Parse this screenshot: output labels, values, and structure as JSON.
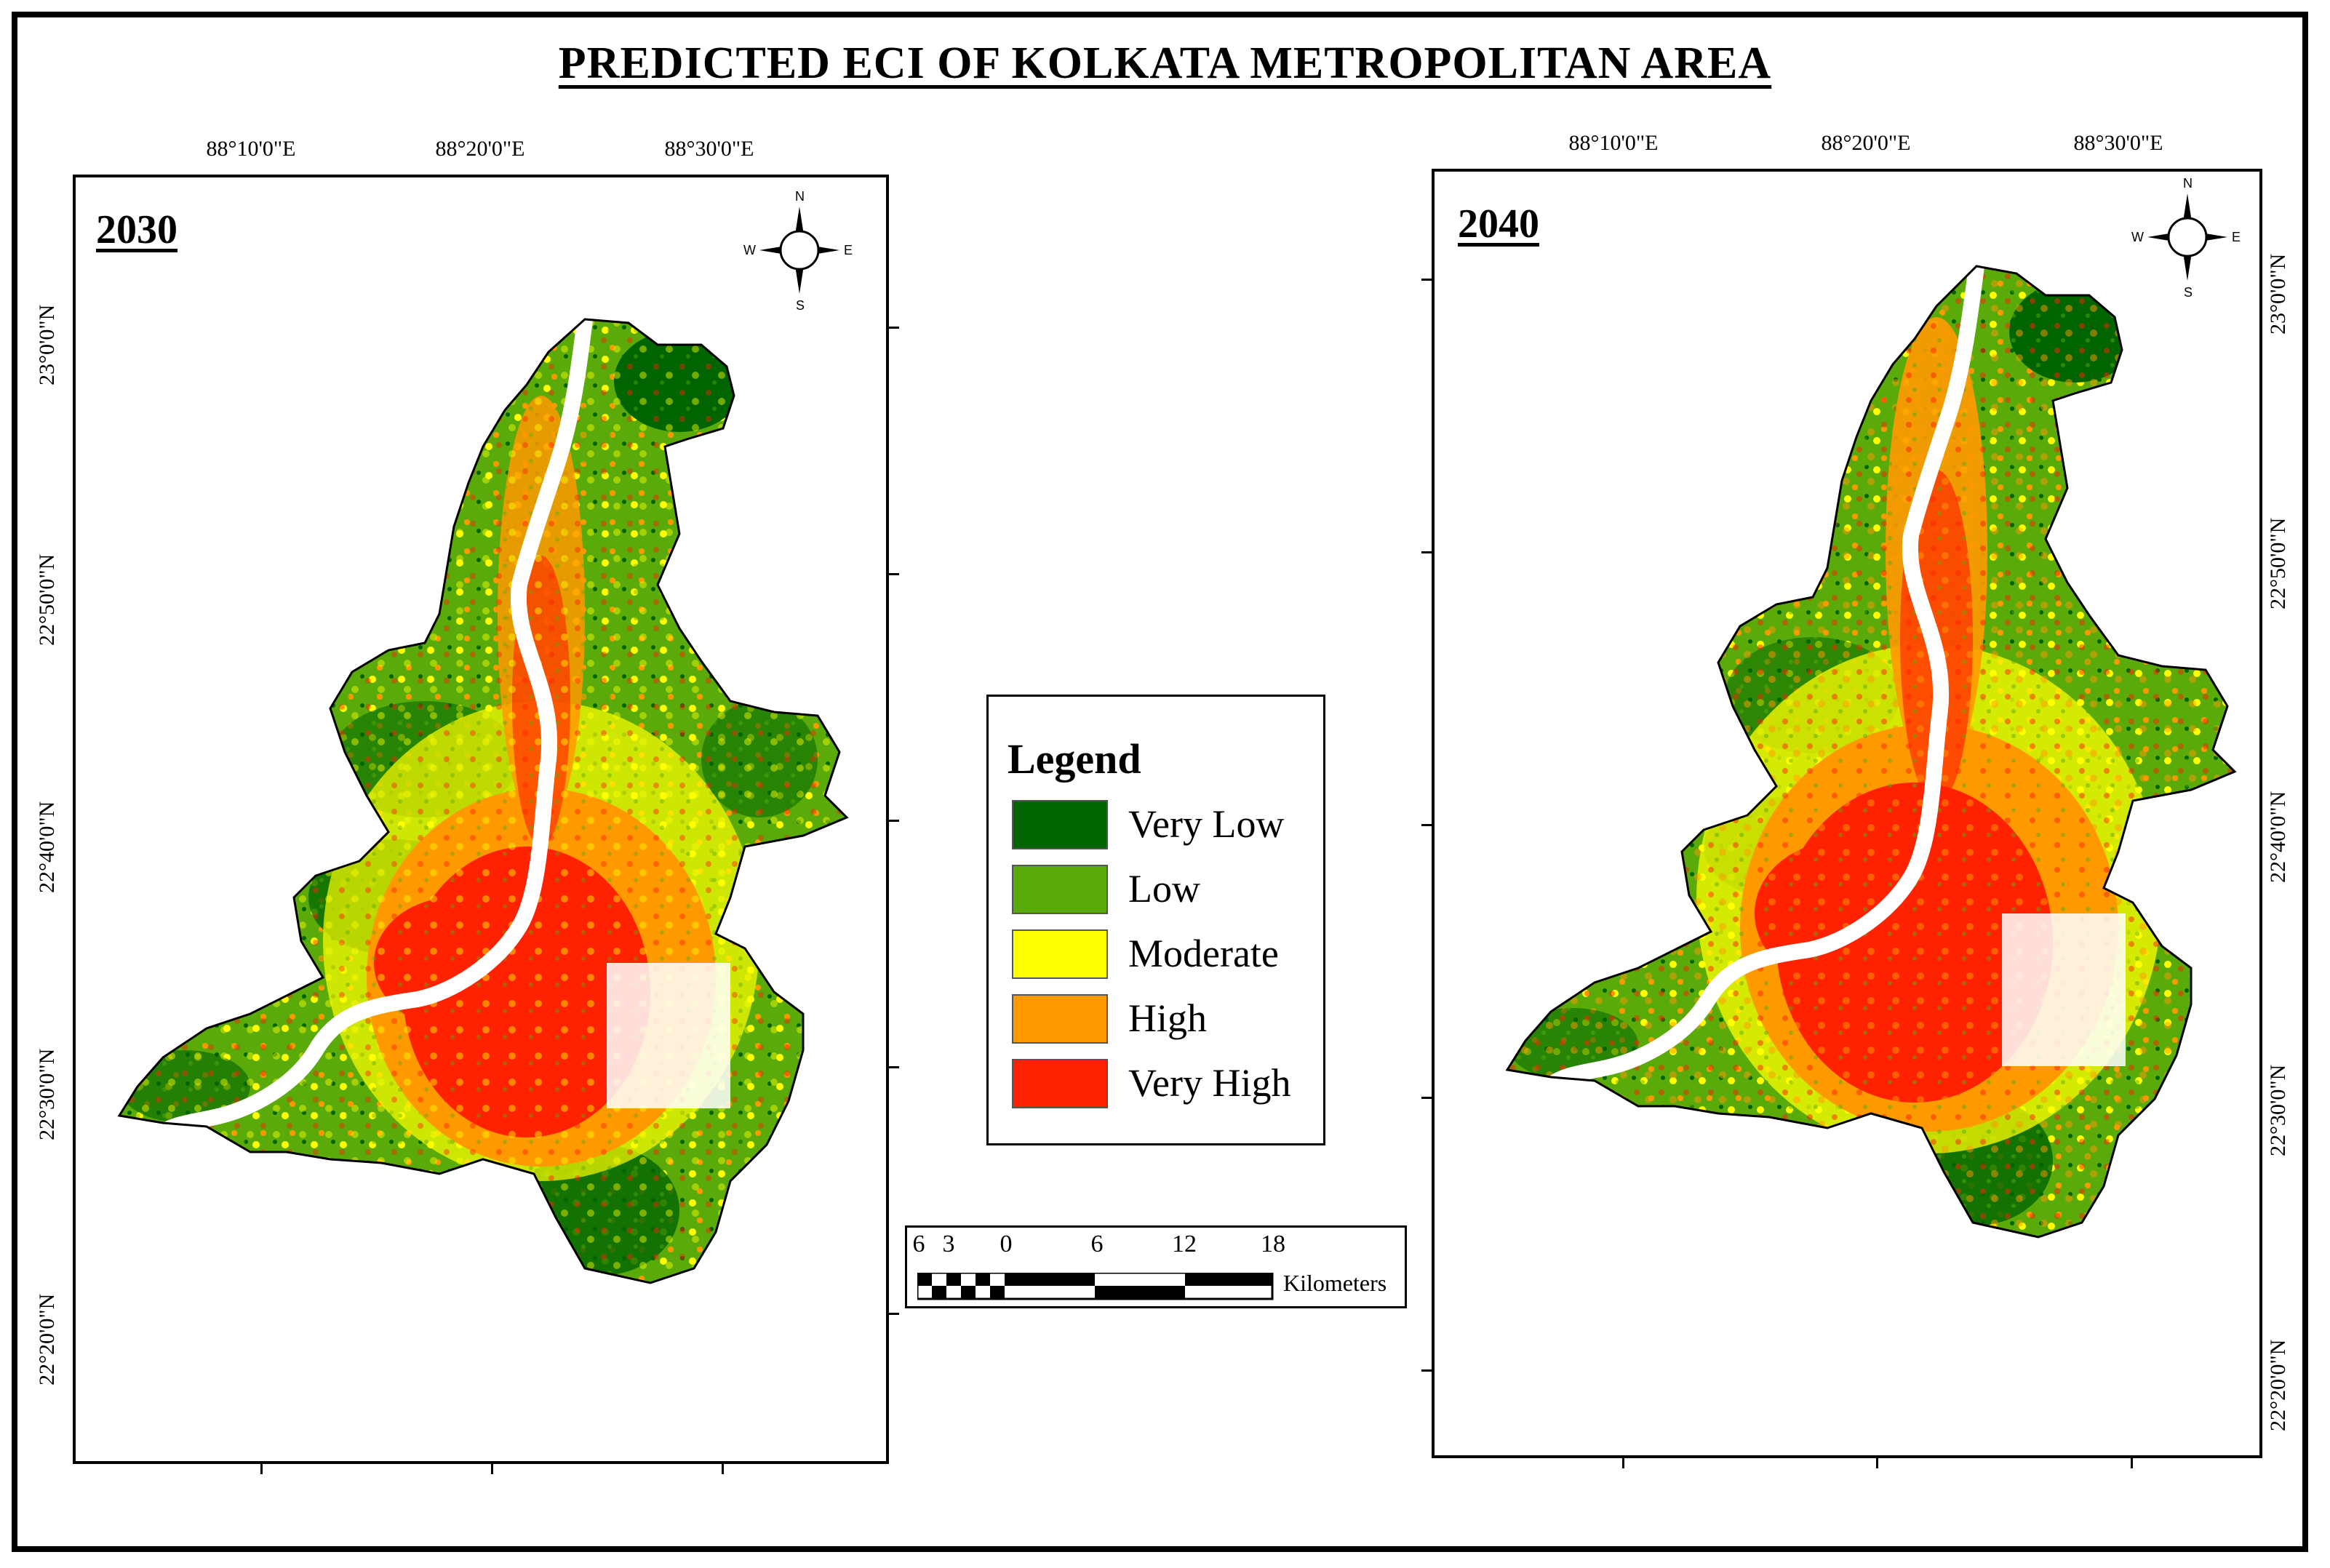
{
  "title": "PREDICTED ECI OF KOLKATA METROPOLITAN AREA",
  "panels": [
    {
      "year": "2030",
      "lon_labels": [
        "88°10'0\"E",
        "88°20'0\"E",
        "88°30'0\"E"
      ],
      "lat_labels": [
        "23°0'0\"N",
        "22°50'0\"N",
        "22°40'0\"N",
        "22°30'0\"N",
        "22°20'0\"N"
      ]
    },
    {
      "year": "2040",
      "lon_labels": [
        "88°10'0\"E",
        "88°20'0\"E",
        "88°30'0\"E"
      ],
      "lat_labels": [
        "23°0'0\"N",
        "22°50'0\"N",
        "22°40'0\"N",
        "22°30'0\"N",
        "22°20'0\"N"
      ]
    }
  ],
  "compass": {
    "n": "N",
    "s": "S",
    "e": "E",
    "w": "W",
    "icon": "north-arrow-compass"
  },
  "legend": {
    "title": "Legend",
    "items": [
      {
        "label": "Very Low",
        "color": "#006400"
      },
      {
        "label": "Low",
        "color": "#5aaa0a"
      },
      {
        "label": "Moderate",
        "color": "#ffff00"
      },
      {
        "label": "High",
        "color": "#ff9900"
      },
      {
        "label": "Very High",
        "color": "#ff2200"
      }
    ]
  },
  "scale_bar": {
    "numbers": [
      "6",
      "3",
      "0",
      "6",
      "12",
      "18"
    ],
    "unit": "Kilometers"
  }
}
